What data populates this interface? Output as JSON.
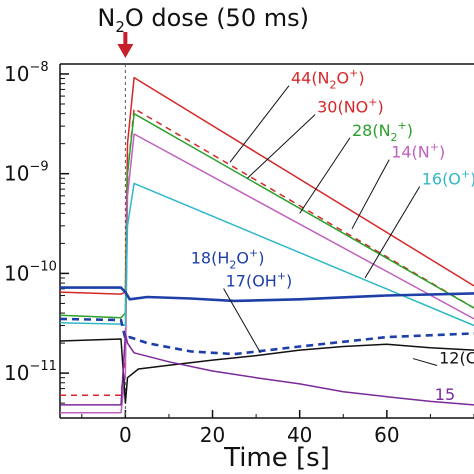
{
  "chart_data": {
    "type": "line",
    "annotation": {
      "prefix": "N",
      "sub": "2",
      "suffix": "O dose (50 ms)",
      "x": 0
    },
    "xlabel": "Time [s]",
    "ylabel": "",
    "xlim": [
      -15,
      80
    ],
    "ylim_log10": [
      -11.45,
      -7.9
    ],
    "yscale": "log",
    "grid": false,
    "x_ticks": [
      0,
      20,
      40,
      60
    ],
    "y_ticks": [
      {
        "exp": -8,
        "label": "10",
        "sup": "−8"
      },
      {
        "exp": -9,
        "label": "10",
        "sup": "−9"
      },
      {
        "exp": -10,
        "label": "10",
        "sup": "−10"
      },
      {
        "exp": -11,
        "label": "10",
        "sup": "−11"
      }
    ],
    "series": [
      {
        "name": "44",
        "label_parts": [
          {
            "t": "44(N"
          },
          {
            "t": "2",
            "sub": true
          },
          {
            "t": "O"
          },
          {
            "t": "+",
            "sup": true
          },
          {
            "t": ")"
          }
        ],
        "color": "#d62728",
        "dash": false,
        "x": [
          -15,
          -1,
          0,
          0.5,
          2,
          80
        ],
        "y": [
          6.5e-11,
          6.2e-11,
          6.5e-11,
          2e-09,
          9.2e-09,
          7.5e-11
        ],
        "label_pos": {
          "x": 38,
          "y": 8e-09
        },
        "leader_to": {
          "x": 24,
          "y": 1.3e-09
        }
      },
      {
        "name": "30",
        "label_parts": [
          {
            "t": "30(NO"
          },
          {
            "t": "+",
            "sup": true
          },
          {
            "t": ")"
          }
        ],
        "color": "#d62728",
        "dash": true,
        "x": [
          -15,
          -1,
          0,
          0.5,
          2,
          80
        ],
        "y": [
          6e-12,
          6e-12,
          1.5e-11,
          1e-09,
          4.5e-09,
          4.5e-11
        ],
        "label_pos": {
          "x": 44,
          "y": 4.1e-09
        },
        "leader_to": {
          "x": 28,
          "y": 9e-10
        }
      },
      {
        "name": "28",
        "label_parts": [
          {
            "t": "28(N"
          },
          {
            "t": "2",
            "sub": true
          },
          {
            "t": ""
          },
          {
            "t": "+",
            "sup": true
          },
          {
            "t": ")"
          }
        ],
        "color": "#2ca02c",
        "dash": false,
        "x": [
          -15,
          -1,
          0,
          0.5,
          2,
          80
        ],
        "y": [
          3.8e-11,
          3.6e-11,
          4e-11,
          1e-09,
          4e-09,
          4.5e-11
        ],
        "label_pos": {
          "x": 52,
          "y": 2.4e-09
        },
        "leader_to": {
          "x": 40,
          "y": 4e-10
        }
      },
      {
        "name": "14",
        "label_parts": [
          {
            "t": "14(N"
          },
          {
            "t": "+",
            "sup": true
          },
          {
            "t": ")"
          }
        ],
        "color": "#c060c0",
        "dash": false,
        "x": [
          -15,
          -1,
          0,
          0.5,
          2,
          80
        ],
        "y": [
          4e-12,
          4e-12,
          1e-11,
          6e-10,
          2.5e-09,
          3.5e-11
        ],
        "label_pos": {
          "x": 61,
          "y": 1.45e-09
        },
        "leader_to": {
          "x": 52,
          "y": 2.8e-10
        }
      },
      {
        "name": "16",
        "label_parts": [
          {
            "t": "16(O"
          },
          {
            "t": "+",
            "sup": true
          },
          {
            "t": ")"
          }
        ],
        "color": "#30b8c8",
        "dash": false,
        "x": [
          -15,
          -1,
          0,
          0.5,
          2,
          80
        ],
        "y": [
          3.2e-11,
          3.1e-11,
          3e-11,
          3e-10,
          8e-10,
          3e-11
        ],
        "label_pos": {
          "x": 68,
          "y": 7.8e-10
        },
        "leader_to": {
          "x": 55,
          "y": 9e-11
        }
      },
      {
        "name": "18",
        "label_parts": [
          {
            "t": "18(H"
          },
          {
            "t": "2",
            "sub": true
          },
          {
            "t": "O"
          },
          {
            "t": "+",
            "sup": true
          },
          {
            "t": ")"
          }
        ],
        "color": "#1f3fa8",
        "dash": false,
        "thick": true,
        "x": [
          -15,
          -5,
          -1,
          0,
          1,
          5,
          15,
          25,
          40,
          60,
          80
        ],
        "y": [
          7.2e-11,
          7.2e-11,
          7.2e-11,
          6.5e-11,
          5.5e-11,
          5.8e-11,
          5.6e-11,
          5.3e-11,
          5.5e-11,
          6e-11,
          6.3e-11
        ],
        "label_pos": {
          "x": 15,
          "y": 1.25e-10
        },
        "leader_to": null
      },
      {
        "name": "17",
        "label_parts": [
          {
            "t": "17(OH"
          },
          {
            "t": "+",
            "sup": true
          },
          {
            "t": ")"
          }
        ],
        "color": "#1f3fa8",
        "dash": true,
        "thick": true,
        "x": [
          -15,
          -1,
          0,
          1,
          5,
          15,
          25,
          40,
          60,
          80
        ],
        "y": [
          3.5e-11,
          3.4e-11,
          2.2e-11,
          2.3e-11,
          2e-11,
          1.65e-11,
          1.55e-11,
          1.85e-11,
          2.3e-11,
          2.5e-11
        ],
        "label_pos": {
          "x": 23,
          "y": 7.4e-11
        },
        "leader_to": {
          "x": 31,
          "y": 1.6e-11
        }
      },
      {
        "name": "12",
        "label_parts": [
          {
            "t": "12(C"
          },
          {
            "t": "+",
            "sup": true
          },
          {
            "t": ")"
          }
        ],
        "color": "#111111",
        "dash": false,
        "x": [
          -15,
          -1,
          0,
          0.5,
          3,
          10,
          20,
          30,
          40,
          50,
          60,
          70,
          80
        ],
        "y": [
          2.1e-11,
          2.2e-11,
          5e-12,
          9e-12,
          1.1e-11,
          1.2e-11,
          1.35e-11,
          1.5e-11,
          1.7e-11,
          1.85e-11,
          1.95e-11,
          1.8e-11,
          1.7e-11
        ],
        "label_pos": {
          "x": 72,
          "y": 1.25e-11
        },
        "leader_to": {
          "x": 66,
          "y": 1.4e-11
        }
      },
      {
        "name": "15",
        "label_parts": [
          {
            "t": "15"
          }
        ],
        "color": "#7a2a9a",
        "dash": false,
        "x": [
          -15,
          -1,
          0,
          0.5,
          2,
          10,
          20,
          30,
          40,
          50,
          60,
          70,
          80
        ],
        "y": [
          4.8e-12,
          4.8e-12,
          2.5e-11,
          2e-11,
          1.6e-11,
          1.3e-11,
          1.05e-11,
          9e-12,
          7.8e-12,
          6.5e-12,
          5.8e-12,
          5.2e-12,
          4.8e-12
        ],
        "label_pos": {
          "x": 71,
          "y": 5.4e-12
        },
        "leader_to": null
      }
    ]
  }
}
